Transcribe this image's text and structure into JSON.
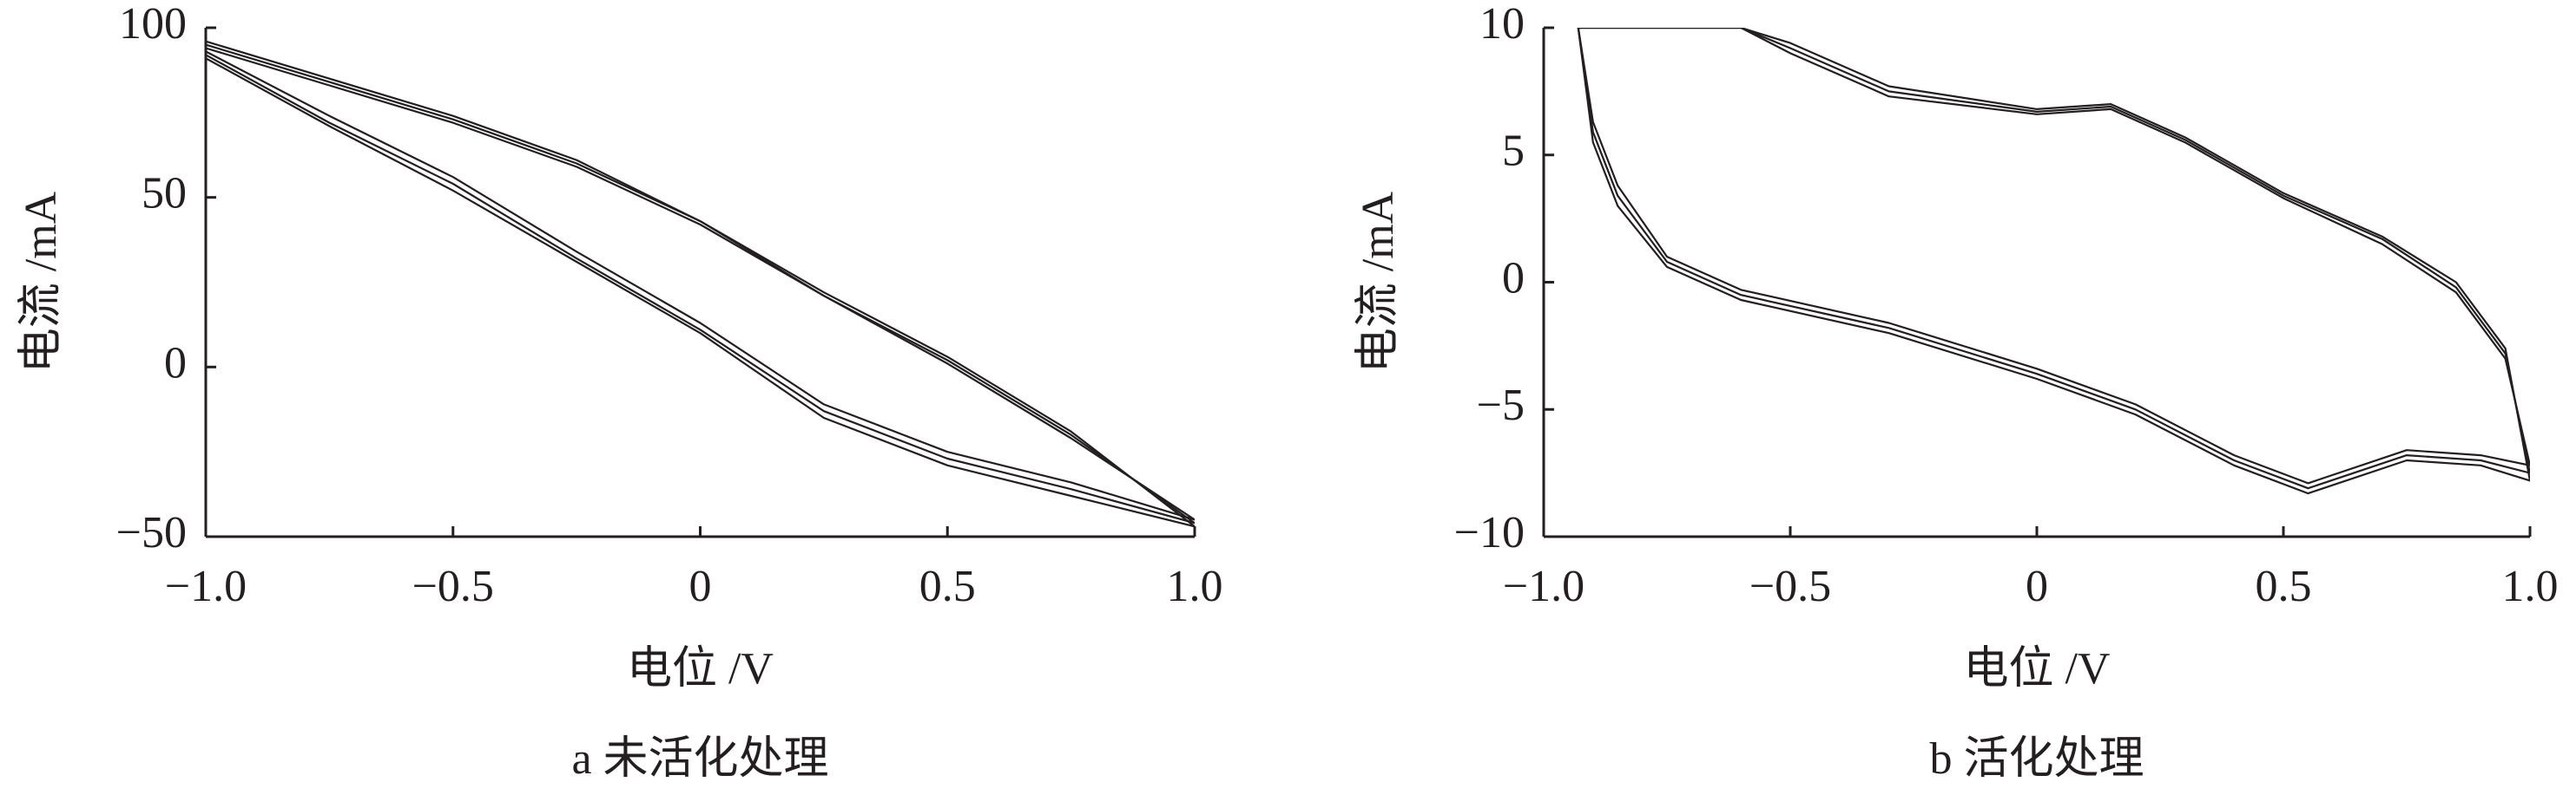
{
  "chart_data": [
    {
      "type": "line",
      "title": "a 未活化处理",
      "x_label": "电位 /V",
      "y_label": "电流 /mA",
      "x": [
        -1,
        -0.75,
        -0.5,
        -0.25,
        0,
        0.25,
        0.5,
        0.75,
        1,
        0.75,
        0.5,
        0.25,
        0,
        -0.25,
        -0.5,
        -0.75,
        -1
      ],
      "series": [
        {
          "name": "cycle 1",
          "color": "#231f20",
          "values": [
            95,
            84,
            73,
            60,
            43,
            21,
            2,
            -20,
            -46,
            -36,
            -27,
            -13,
            11,
            32,
            54,
            72,
            92
          ]
        },
        {
          "name": "cycle 2",
          "color": "#231f20",
          "values": [
            96,
            85,
            74,
            61,
            43,
            22,
            3,
            -19,
            -47,
            -38,
            -29,
            -15,
            10,
            31,
            52,
            71,
            91
          ]
        },
        {
          "name": "cycle 3",
          "color": "#231f20",
          "values": [
            94,
            83,
            72,
            59,
            42,
            21,
            1,
            -21,
            -45,
            -34,
            -25,
            -11,
            13,
            34,
            56,
            74,
            93
          ]
        }
      ],
      "xlim": [
        -1,
        1
      ],
      "xticks": [
        {
          "value": -1,
          "label": "−1.0"
        },
        {
          "value": -0.5,
          "label": "−0.5"
        },
        0,
        0.5,
        {
          "value": 1,
          "label": "1.0"
        }
      ],
      "ylim": [
        -50,
        100
      ],
      "yticks": [
        {
          "value": -50,
          "label": "−50"
        },
        0,
        50,
        100
      ]
    },
    {
      "type": "line",
      "title": "b 活化处理",
      "x_label": "电位 /V",
      "y_label": "电流 /mA",
      "x": [
        -0.93,
        -0.6,
        -0.5,
        -0.3,
        0,
        0.15,
        0.3,
        0.5,
        0.7,
        0.85,
        0.95,
        1,
        0.9,
        0.75,
        0.55,
        0.4,
        0.2,
        0,
        -0.3,
        -0.6,
        -0.75,
        -0.85,
        -0.9,
        -0.93
      ],
      "series": [
        {
          "name": "cycle 1",
          "color": "#231f20",
          "values": [
            10,
            10,
            9.2,
            7.5,
            6.7,
            6.9,
            5.6,
            3.4,
            1.7,
            -0.2,
            -2.8,
            -7.5,
            -7,
            -6.8,
            -8.1,
            -7,
            -5,
            -3.6,
            -1.8,
            -0.5,
            0.8,
            3.4,
            5.9,
            10
          ]
        },
        {
          "name": "cycle 2",
          "color": "#231f20",
          "values": [
            10,
            10,
            9.0,
            7.3,
            6.6,
            6.8,
            5.5,
            3.3,
            1.5,
            -0.4,
            -3.0,
            -7.2,
            -6.8,
            -6.6,
            -7.9,
            -6.8,
            -4.8,
            -3.4,
            -1.6,
            -0.3,
            1.0,
            3.8,
            6.3,
            10
          ]
        },
        {
          "name": "cycle 3",
          "color": "#231f20",
          "values": [
            10,
            10,
            9.4,
            7.7,
            6.8,
            7.0,
            5.7,
            3.5,
            1.8,
            0,
            -2.6,
            -7.8,
            -7.2,
            -7.0,
            -8.3,
            -7.2,
            -5.2,
            -3.8,
            -2.0,
            -0.7,
            0.6,
            3.0,
            5.5,
            10
          ]
        }
      ],
      "xlim": [
        -1,
        1
      ],
      "xticks": [
        {
          "value": -1,
          "label": "−1.0"
        },
        {
          "value": -0.5,
          "label": "−0.5"
        },
        0,
        0.5,
        {
          "value": 1,
          "label": "1.0"
        }
      ],
      "ylim": [
        -10,
        10
      ],
      "yticks": [
        {
          "value": -10,
          "label": "−10"
        },
        {
          "value": -5,
          "label": "−5"
        },
        0,
        5,
        10
      ]
    }
  ]
}
